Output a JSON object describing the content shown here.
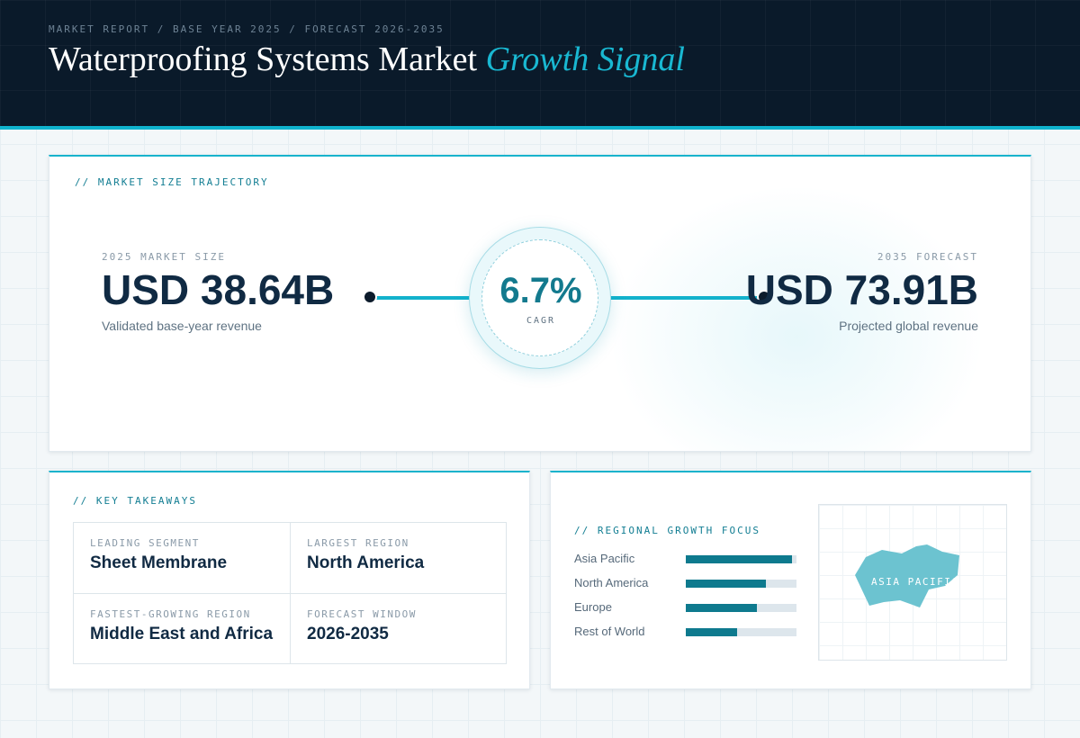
{
  "header": {
    "breadcrumb": "MARKET REPORT / BASE YEAR 2025 / FORECAST 2026-2035",
    "title_main": "Waterproofing Systems Market",
    "title_accent": "Growth Signal"
  },
  "trajectory": {
    "section_label": "// MARKET SIZE TRAJECTORY",
    "start": {
      "label": "2025 MARKET SIZE",
      "value": "USD 38.64B",
      "desc": "Validated base-year revenue"
    },
    "cagr": {
      "value": "6.7%",
      "label": "CAGR"
    },
    "end": {
      "label": "2035 FORECAST",
      "value": "USD 73.91B",
      "desc": "Projected global revenue"
    }
  },
  "takeaways": {
    "section_label": "// KEY TAKEAWAYS",
    "items": [
      {
        "label": "LEADING SEGMENT",
        "value": "Sheet Membrane"
      },
      {
        "label": "LARGEST REGION",
        "value": "North America"
      },
      {
        "label": "FASTEST-GROWING REGION",
        "value": "Middle East and Africa"
      },
      {
        "label": "FORECAST WINDOW",
        "value": "2026-2035"
      }
    ]
  },
  "regional": {
    "section_label": "// REGIONAL GROWTH FOCUS",
    "bars": [
      {
        "name": "Asia Pacific",
        "level": 0.96
      },
      {
        "name": "North America",
        "level": 0.72
      },
      {
        "name": "Europe",
        "level": 0.64
      },
      {
        "name": "Rest of World",
        "level": 0.46
      }
    ],
    "map_label": "ASIA PACIFIC",
    "colors": {
      "bar_fill": "#0e7a8e",
      "bar_track": "#dde6ec",
      "map_region": "#6cc3d0",
      "accent": "#18b3cc"
    }
  }
}
